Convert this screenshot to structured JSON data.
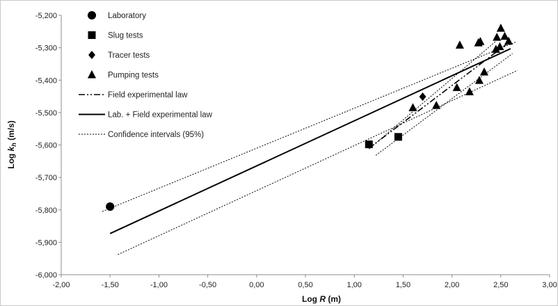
{
  "chart_data": {
    "type": "scatter",
    "xlabel": {
      "prefix": "Log ",
      "var": "R",
      "suffix": " (m)"
    },
    "ylabel": {
      "prefix": "Log ",
      "var": "k",
      "sub": "h",
      "suffix": " (m/s)"
    },
    "xlim": [
      -2.0,
      3.0
    ],
    "ylim": [
      -6.0,
      -5.2
    ],
    "xticks": [
      -2.0,
      -1.5,
      -1.0,
      -0.5,
      0.0,
      0.5,
      1.0,
      1.5,
      2.0,
      2.5,
      3.0
    ],
    "xtick_labels": [
      "-2,00",
      "-1,50",
      "-1,00",
      "-0,50",
      "0,00",
      "0,50",
      "1,00",
      "1,50",
      "2,00",
      "2,50",
      "3,00"
    ],
    "yticks": [
      -6.0,
      -5.9,
      -5.8,
      -5.7,
      -5.6,
      -5.5,
      -5.4,
      -5.3,
      -5.2
    ],
    "ytick_labels": [
      "-6,000",
      "-5,900",
      "-5,800",
      "-5,700",
      "-5,600",
      "-5,500",
      "-5,400",
      "-5,300",
      "-5,200"
    ],
    "grid": false,
    "legend_position": "top-left",
    "series": [
      {
        "name": "Laboratory",
        "kind": "points",
        "marker": "circle",
        "points": [
          [
            -1.5,
            -5.79
          ]
        ]
      },
      {
        "name": "Slug tests",
        "kind": "points",
        "marker": "square",
        "points": [
          [
            1.15,
            -5.598
          ],
          [
            1.45,
            -5.575
          ]
        ]
      },
      {
        "name": "Tracer tests",
        "kind": "points",
        "marker": "diamond",
        "points": [
          [
            1.7,
            -5.451
          ]
        ]
      },
      {
        "name": "Pumping tests",
        "kind": "points",
        "marker": "triangle",
        "points": [
          [
            1.6,
            -5.485
          ],
          [
            1.84,
            -5.478
          ],
          [
            2.05,
            -5.423
          ],
          [
            2.08,
            -5.292
          ],
          [
            2.18,
            -5.436
          ],
          [
            2.27,
            -5.285
          ],
          [
            2.28,
            -5.401
          ],
          [
            2.29,
            -5.281
          ],
          [
            2.33,
            -5.375
          ],
          [
            2.45,
            -5.305
          ],
          [
            2.46,
            -5.268
          ],
          [
            2.49,
            -5.297
          ],
          [
            2.5,
            -5.24
          ],
          [
            2.54,
            -5.265
          ],
          [
            2.58,
            -5.28
          ]
        ]
      },
      {
        "name": "Field experimental law",
        "kind": "line",
        "dash": "dashdot",
        "width": 1.6,
        "points": [
          [
            1.15,
            -5.61
          ],
          [
            2.6,
            -5.28
          ]
        ]
      },
      {
        "name": "Lab. + Field experimental law",
        "kind": "line",
        "dash": "solid",
        "width": 2,
        "points": [
          [
            -1.5,
            -5.873
          ],
          [
            2.6,
            -5.303
          ]
        ]
      },
      {
        "name": "Confidence intervals (95%)",
        "kind": "line",
        "dash": "dotted",
        "width": 1,
        "lines": [
          [
            [
              -1.58,
              -5.805
            ],
            [
              2.65,
              -5.283
            ]
          ],
          [
            [
              -1.42,
              -5.938
            ],
            [
              2.67,
              -5.37
            ]
          ],
          [
            [
              1.15,
              -5.612
            ],
            [
              2.45,
              -5.28
            ]
          ],
          [
            [
              1.22,
              -5.632
            ],
            [
              2.62,
              -5.318
            ]
          ]
        ]
      }
    ]
  }
}
